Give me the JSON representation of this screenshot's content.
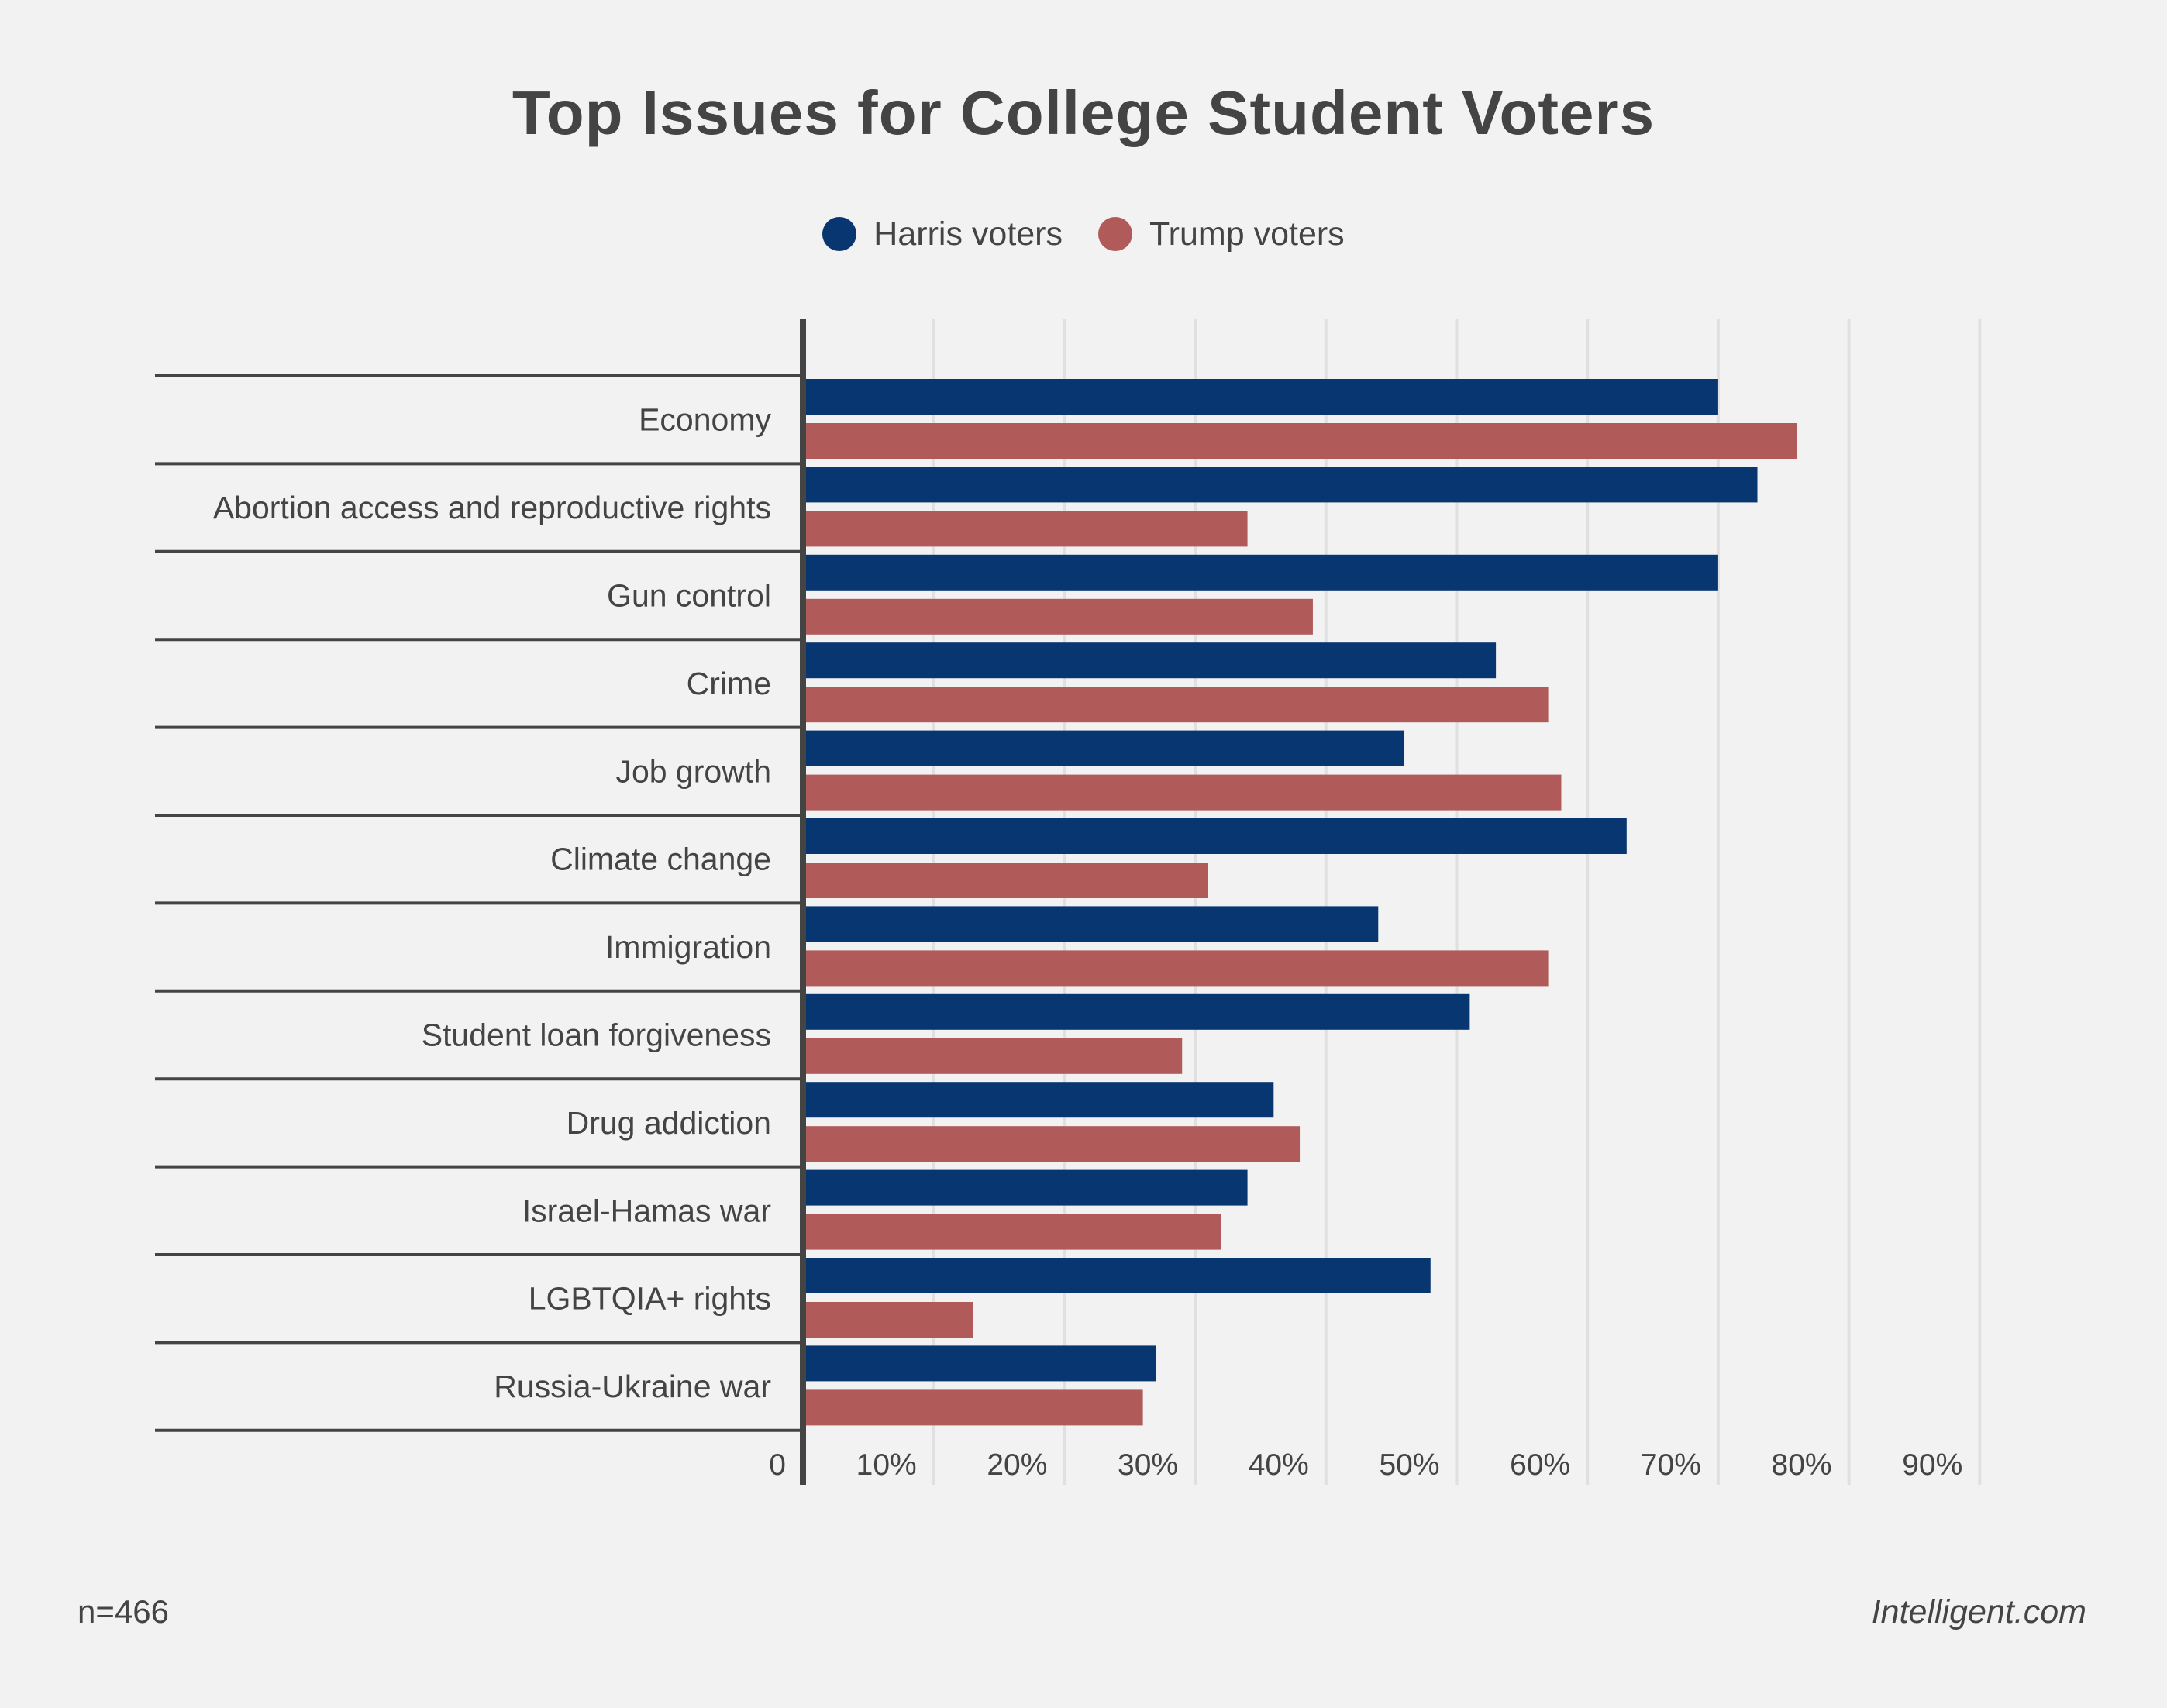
{
  "chart_data": {
    "type": "bar",
    "orientation": "horizontal",
    "title": "Top Issues for College Student Voters",
    "xlabel": "",
    "ylabel": "",
    "xlim": [
      0,
      90
    ],
    "x_ticks": [
      0,
      10,
      20,
      30,
      40,
      50,
      60,
      70,
      80,
      90
    ],
    "x_tick_labels": [
      "0",
      "10%",
      "20%",
      "30%",
      "40%",
      "50%",
      "60%",
      "70%",
      "80%",
      "90%"
    ],
    "grid": true,
    "legend_position": "top-center",
    "categories": [
      "Economy",
      "Abortion access and reproductive rights",
      "Gun control",
      "Crime",
      "Job growth",
      "Climate change",
      "Immigration",
      "Student loan forgiveness",
      "Drug addiction",
      "Israel-Hamas war",
      "LGBTQIA+ rights",
      "Russia-Ukraine war"
    ],
    "series": [
      {
        "name": "Harris voters",
        "color": "#073670",
        "values": [
          70,
          73,
          70,
          53,
          46,
          63,
          44,
          51,
          36,
          34,
          48,
          27
        ]
      },
      {
        "name": "Trump voters",
        "color": "#b05a5a",
        "values": [
          76,
          34,
          39,
          57,
          58,
          31,
          57,
          29,
          38,
          32,
          13,
          26
        ]
      }
    ],
    "unit": "%"
  },
  "footer": {
    "sample_size": "n=466",
    "source": "Intelligent.com"
  },
  "colors": {
    "background": "#f2f2f2",
    "text": "#444444",
    "axis": "#444444",
    "gridline": "#e0e0e0"
  }
}
